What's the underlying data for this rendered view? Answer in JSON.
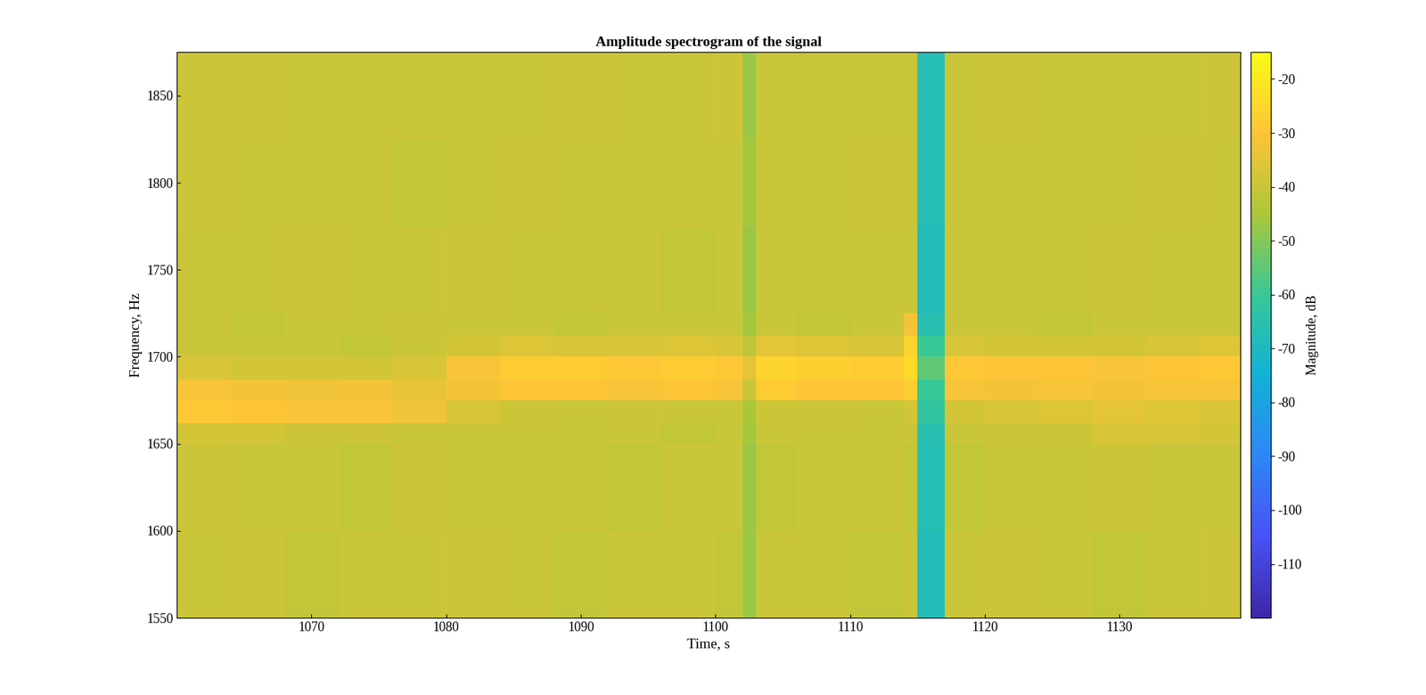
{
  "chart_data": {
    "type": "heatmap",
    "title": "Amplitude spectrogram of the signal",
    "x_label": "Time, s",
    "y_label": "Frequency, Hz",
    "xlim": [
      1060,
      1139
    ],
    "ylim": [
      1550,
      1875
    ],
    "xticks": [
      1070,
      1080,
      1090,
      1100,
      1110,
      1120,
      1130
    ],
    "yticks": [
      1550,
      1600,
      1650,
      1700,
      1750,
      1800,
      1850
    ],
    "x_edges": [
      1060,
      1064,
      1068,
      1072,
      1076,
      1080,
      1084,
      1088,
      1092,
      1096,
      1100,
      1102,
      1103,
      1106,
      1110,
      1114,
      1115,
      1117,
      1120,
      1124,
      1128,
      1132,
      1136,
      1139
    ],
    "y_edges": [
      1550,
      1600,
      1650,
      1662,
      1675,
      1687,
      1700,
      1712,
      1725,
      1775,
      1825,
      1875
    ],
    "cells": [
      [
        -40,
        -39,
        -41,
        -40,
        -40,
        -39,
        -40,
        -41,
        -40,
        -40,
        -41,
        -47,
        -40,
        -40,
        -41,
        -40,
        -68,
        -40,
        -39,
        -40,
        -41,
        -40,
        -39
      ],
      [
        -39,
        -40,
        -40,
        -41,
        -39,
        -40,
        -40,
        -40,
        -41,
        -40,
        -40,
        -47,
        -41,
        -40,
        -40,
        -41,
        -67,
        -41,
        -40,
        -40,
        -39,
        -40,
        -40
      ],
      [
        -38,
        -38,
        -39,
        -39,
        -40,
        -40,
        -40,
        -40,
        -40,
        -41,
        -40,
        -46,
        -40,
        -40,
        -40,
        -40,
        -66,
        -40,
        -39,
        -39,
        -37,
        -37,
        -38
      ],
      [
        -29,
        -30,
        -31,
        -31,
        -33,
        -37,
        -39,
        -40,
        -39,
        -40,
        -40,
        -45,
        -39,
        -39,
        -40,
        -38,
        -62,
        -38,
        -37,
        -36,
        -35,
        -36,
        -37
      ],
      [
        -31,
        -32,
        -33,
        -32,
        -34,
        -32,
        -30,
        -30,
        -31,
        -30,
        -31,
        -40,
        -28,
        -30,
        -30,
        -27,
        -60,
        -31,
        -32,
        -31,
        -32,
        -31,
        -31
      ],
      [
        -37,
        -38,
        -38,
        -38,
        -37,
        -31,
        -28,
        -28,
        -29,
        -28,
        -29,
        -35,
        -26,
        -27,
        -28,
        -24,
        -55,
        -29,
        -30,
        -30,
        -31,
        -30,
        -29
      ],
      [
        -40,
        -40,
        -40,
        -41,
        -40,
        -38,
        -36,
        -37,
        -37,
        -36,
        -37,
        -42,
        -35,
        -36,
        -37,
        -26,
        -60,
        -37,
        -38,
        -38,
        -38,
        -37,
        -36
      ],
      [
        -40,
        -41,
        -40,
        -40,
        -39,
        -40,
        -40,
        -41,
        -40,
        -40,
        -40,
        -46,
        -40,
        -41,
        -40,
        -32,
        -66,
        -40,
        -40,
        -41,
        -40,
        -40,
        -40
      ],
      [
        -40,
        -40,
        -39,
        -40,
        -40,
        -39,
        -40,
        -40,
        -40,
        -41,
        -40,
        -47,
        -40,
        -40,
        -40,
        -40,
        -68,
        -40,
        -40,
        -40,
        -39,
        -40,
        -40
      ],
      [
        -39,
        -40,
        -40,
        -40,
        -41,
        -40,
        -39,
        -40,
        -40,
        -40,
        -40,
        -46,
        -40,
        -40,
        -39,
        -40,
        -67,
        -40,
        -40,
        -40,
        -40,
        -39,
        -40
      ],
      [
        -39,
        -39,
        -40,
        -40,
        -40,
        -40,
        -40,
        -39,
        -40,
        -40,
        -39,
        -47,
        -40,
        -40,
        -40,
        -40,
        -67,
        -40,
        -39,
        -40,
        -40,
        -40,
        -39
      ]
    ],
    "colorbar": {
      "label": "Magnitude, dB",
      "lim": [
        -120,
        -15
      ],
      "ticks": [
        -110,
        -100,
        -90,
        -80,
        -70,
        -60,
        -50,
        -40,
        -30,
        -20
      ]
    }
  }
}
